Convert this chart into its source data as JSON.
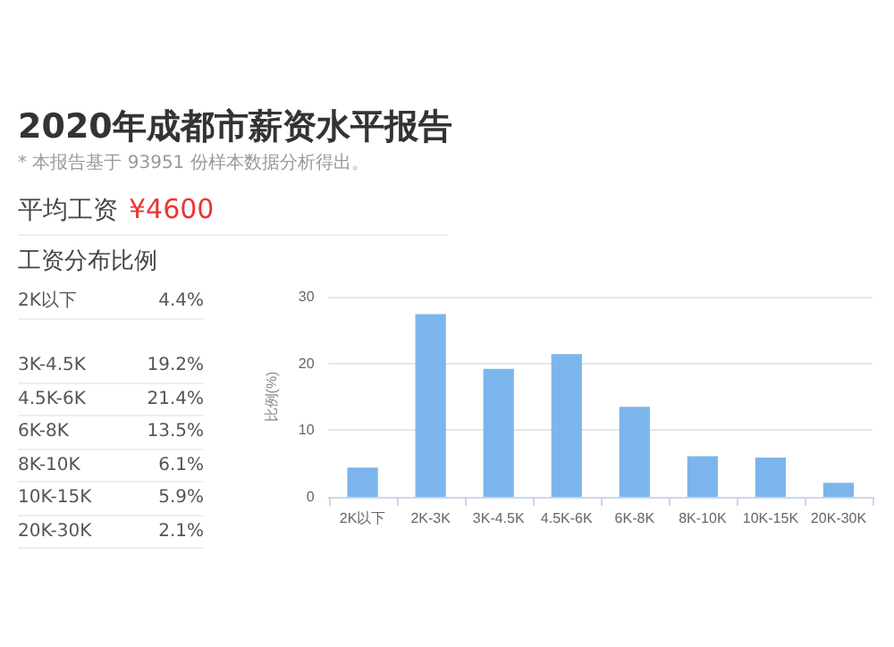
{
  "chart_data": {
    "type": "bar",
    "title": "2020年成都市薪资水平报告",
    "subtitle": "* 本报告基于 93951 份样本数据分析得出。",
    "annotations": [
      "平均工资",
      "¥4600",
      "工资分布比例",
      "2K以下",
      "4.4%",
      "3K-4.5K",
      "19.2%",
      "4.5K-6K",
      "21.4%",
      "6K-8K",
      "13.5%",
      "8K-10K",
      "6.1%",
      "10K-15K",
      "5.9%",
      "20K-30K",
      "2.1%"
    ],
    "ylabel": "比例(%)",
    "categories": [
      "2K以下",
      "2K-3K",
      "3K-4.5K",
      "4.5K-6K",
      "6K-8K",
      "8K-10K",
      "10K-15K",
      "20K-30K"
    ],
    "values": [
      4.4,
      27.4,
      19.2,
      21.4,
      13.5,
      6.1,
      5.9,
      2.1
    ],
    "color": "#7cb5ec",
    "ylim": [
      0,
      30
    ],
    "yticks": [
      0,
      10,
      20,
      30
    ],
    "grid": "y"
  }
}
